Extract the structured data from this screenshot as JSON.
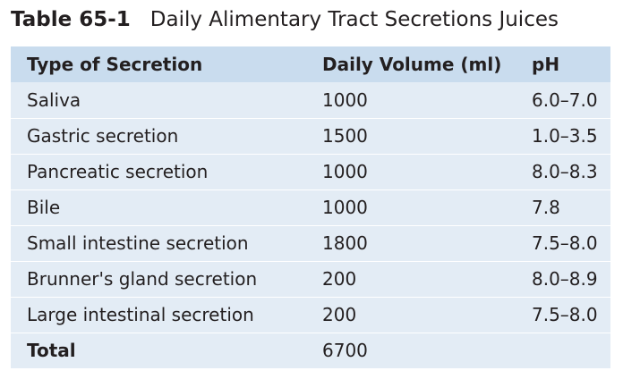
{
  "caption": {
    "number": "Table 65-1",
    "title": "Daily Alimentary Tract Secretions Juices"
  },
  "table": {
    "headers": [
      "Type of Secretion",
      "Daily Volume (ml)",
      "pH"
    ],
    "rows": [
      {
        "type": "Saliva",
        "volume": "1000",
        "ph": "6.0–7.0"
      },
      {
        "type": "Gastric secretion",
        "volume": "1500",
        "ph": "1.0–3.5"
      },
      {
        "type": "Pancreatic secretion",
        "volume": "1000",
        "ph": "8.0–8.3"
      },
      {
        "type": "Bile",
        "volume": "1000",
        "ph": "7.8"
      },
      {
        "type": "Small intestine secretion",
        "volume": "1800",
        "ph": "7.5–8.0"
      },
      {
        "type": "Brunner's gland secretion",
        "volume": "200",
        "ph": "8.0–8.9"
      },
      {
        "type": "Large intestinal secretion",
        "volume": "200",
        "ph": "7.5–8.0"
      }
    ],
    "total": {
      "label": "Total",
      "volume": "6700",
      "ph": ""
    }
  }
}
